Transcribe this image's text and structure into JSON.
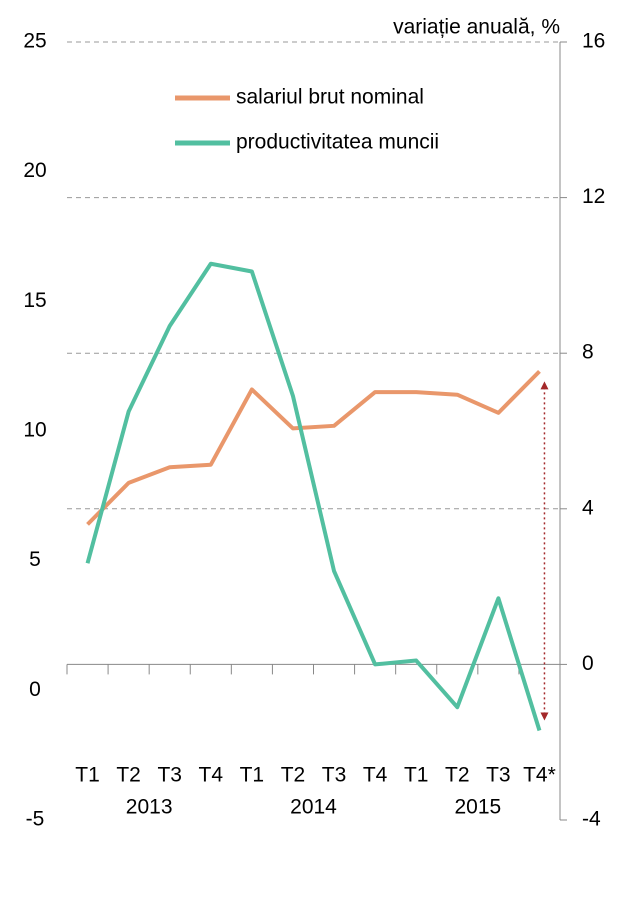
{
  "chart_data": {
    "type": "line",
    "y2_label": "variație anuală, %",
    "categories": [
      "T1",
      "T2",
      "T3",
      "T4",
      "T1",
      "T2",
      "T3",
      "T4",
      "T1",
      "T2",
      "T3",
      "T4*"
    ],
    "category_groups": [
      "2013",
      "2014",
      "2015"
    ],
    "series": [
      {
        "name": "salariul brut nominal",
        "color": "#e9976b",
        "axis": "y",
        "values": [
          6.4,
          8.0,
          8.6,
          8.7,
          11.6,
          10.1,
          10.2,
          11.5,
          11.5,
          11.4,
          10.7,
          12.3
        ]
      },
      {
        "name": "productivitatea muncii",
        "color": "#52bfa0",
        "axis": "y2",
        "values": [
          2.6,
          6.5,
          8.7,
          10.3,
          10.1,
          6.9,
          2.4,
          0.0,
          0.1,
          -1.1,
          1.7,
          -1.7
        ]
      }
    ],
    "ylim": [
      -5,
      25
    ],
    "yticks": [
      -5,
      0,
      5,
      10,
      15,
      20,
      25
    ],
    "y2lim": [
      -4,
      16
    ],
    "y2ticks": [
      -4,
      0,
      4,
      8,
      12,
      16
    ],
    "grid": true
  }
}
